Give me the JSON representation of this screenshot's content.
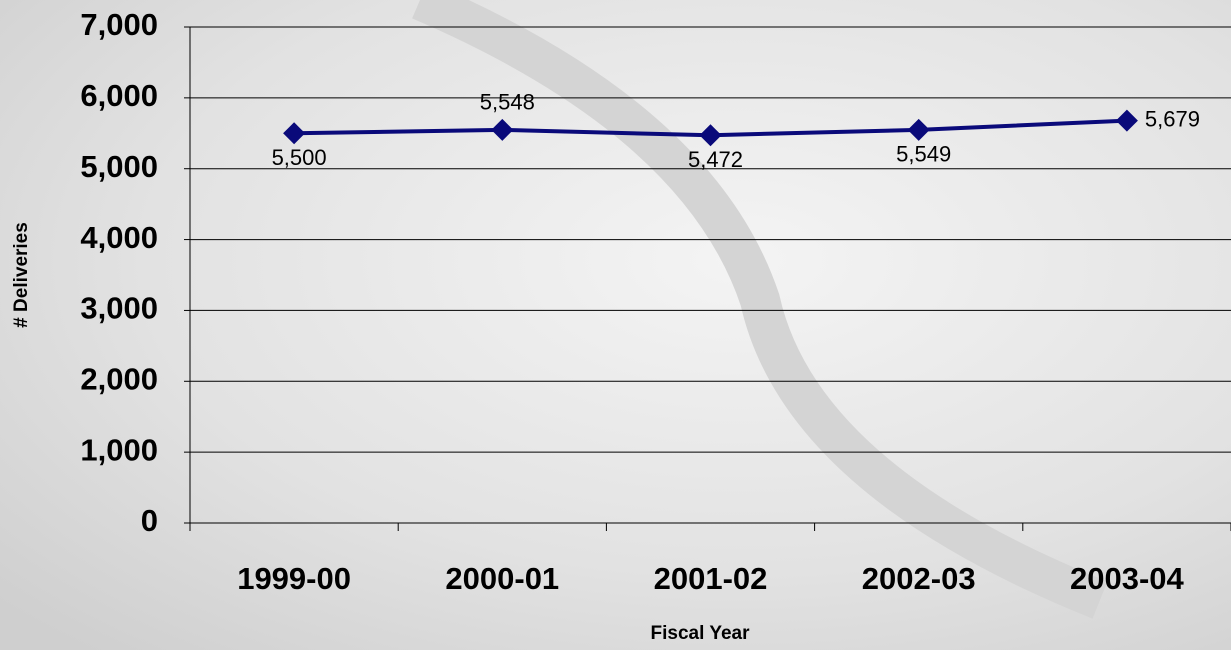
{
  "chart_data": {
    "type": "line",
    "x_label": "Fiscal Year",
    "y_label": "# Deliveries",
    "categories": [
      "1999-00",
      "2000-01",
      "2001-02",
      "2002-03",
      "2003-04"
    ],
    "series": [
      {
        "name": "Deliveries",
        "color": "#0a0a7a",
        "values": [
          5500,
          5548,
          5472,
          5549,
          5679
        ],
        "value_labels": [
          "5,500",
          "5,548",
          "5,472",
          "5,549",
          "5,679"
        ]
      }
    ],
    "ylim": [
      0,
      7000
    ],
    "yticks": [
      {
        "value": 0,
        "label": "0"
      },
      {
        "value": 1000,
        "label": "1,000"
      },
      {
        "value": 2000,
        "label": "2,000"
      },
      {
        "value": 3000,
        "label": "3,000"
      },
      {
        "value": 4000,
        "label": "4,000"
      },
      {
        "value": 5000,
        "label": "5,000"
      },
      {
        "value": 6000,
        "label": "6,000"
      },
      {
        "value": 7000,
        "label": "7,000"
      }
    ],
    "grid": true
  }
}
